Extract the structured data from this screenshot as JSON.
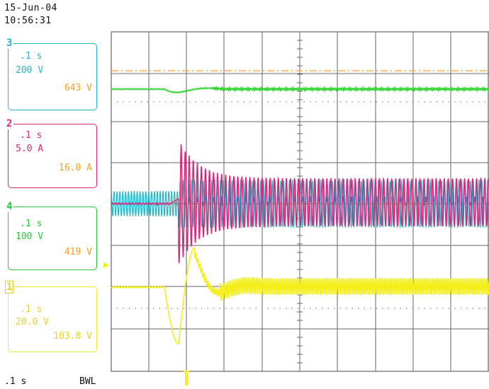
{
  "header": {
    "date": "15-Jun-04",
    "time": "10:56:31"
  },
  "channels": [
    {
      "id": "3",
      "timebase": ".1 s",
      "scale": "200 V",
      "reading": "643 V",
      "color": "#1fb6c7",
      "reading_color": "#f0a020"
    },
    {
      "id": "2",
      "timebase": ".1 s",
      "scale": "5.0 A",
      "reading": "16.0 A",
      "color": "#e0247a",
      "reading_color": "#f0a020"
    },
    {
      "id": "4",
      "timebase": ".1 s",
      "scale": "100 V",
      "reading": "419 V",
      "color": "#27c93a",
      "reading_color": "#f0a020"
    },
    {
      "id": "1",
      "timebase": ".1 s",
      "scale": "20.0 V",
      "reading": "103.8 V",
      "color": "#f2ec2a",
      "reading_color": "#e8d21c"
    }
  ],
  "footer": {
    "timebase": ".1  s",
    "bwl": "BWL"
  },
  "trace_colors": {
    "green": "#2ed62e",
    "cyan": "#1fb6c7",
    "magenta": "#e0247a",
    "yellow": "#f4ee1a",
    "orange": "#f0a020",
    "overlap": "#6a5fb0"
  }
}
